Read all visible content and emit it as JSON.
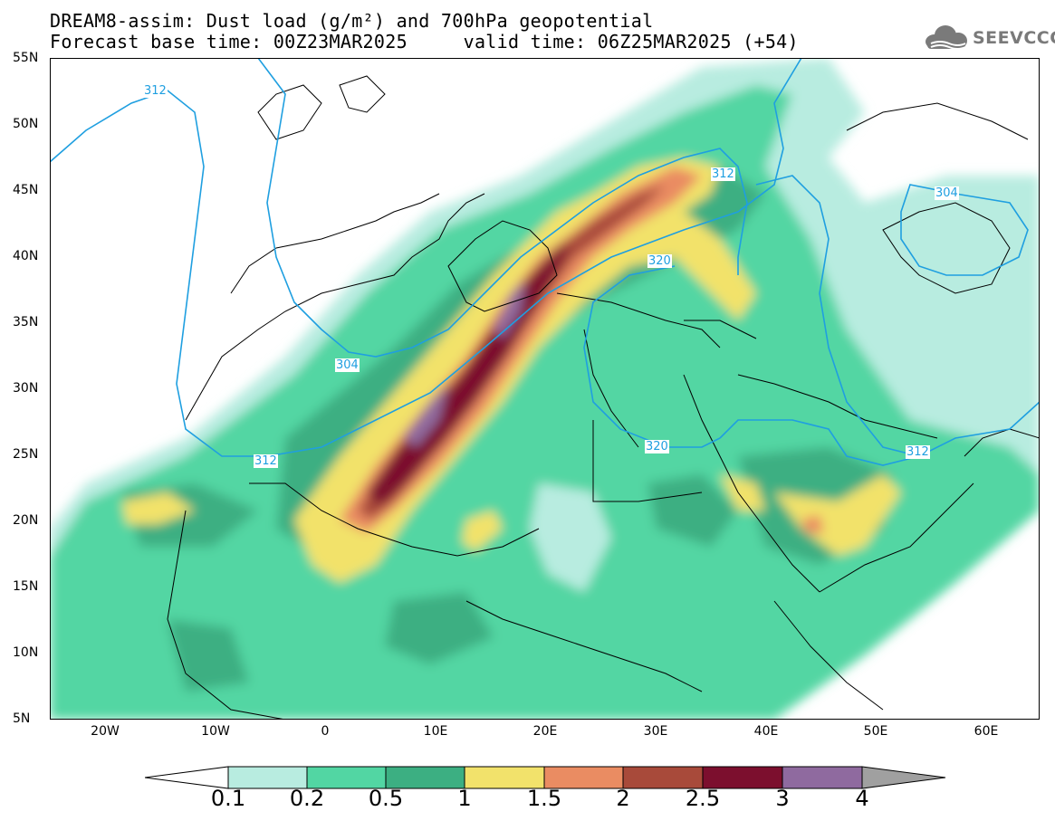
{
  "title": {
    "line1": "DREAM8-assim: Dust load (g/m²) and 700hPa geopotential",
    "line2": "Forecast base time: 00Z23MAR2025     valid time: 06Z25MAR2025 (+54)"
  },
  "logo": {
    "text": "SEEVCCC",
    "icon": "cloud-logo-icon"
  },
  "map": {
    "lon_range": [
      -25,
      65
    ],
    "lat_range": [
      5,
      55
    ],
    "lat_labels": [
      "55N",
      "50N",
      "45N",
      "40N",
      "35N",
      "30N",
      "25N",
      "20N",
      "15N",
      "10N",
      "5N"
    ],
    "lon_labels": [
      "20W",
      "10W",
      "0",
      "10E",
      "20E",
      "30E",
      "40E",
      "50E",
      "60E"
    ],
    "contour_labels": [
      "312",
      "304",
      "312",
      "312",
      "320",
      "320",
      "304",
      "312"
    ],
    "contour_color": "#1f9fe0",
    "border_color": "#000000"
  },
  "colorbar": {
    "labels": [
      "0.1",
      "0.2",
      "0.5",
      "1",
      "1.5",
      "2",
      "2.5",
      "3",
      "4"
    ],
    "colors": [
      "#b8ece0",
      "#52d6a3",
      "#3caf82",
      "#f2e26b",
      "#ea8c62",
      "#a84a3a",
      "#7c0f2e",
      "#8f6a9f",
      "#a0a0a0"
    ]
  }
}
